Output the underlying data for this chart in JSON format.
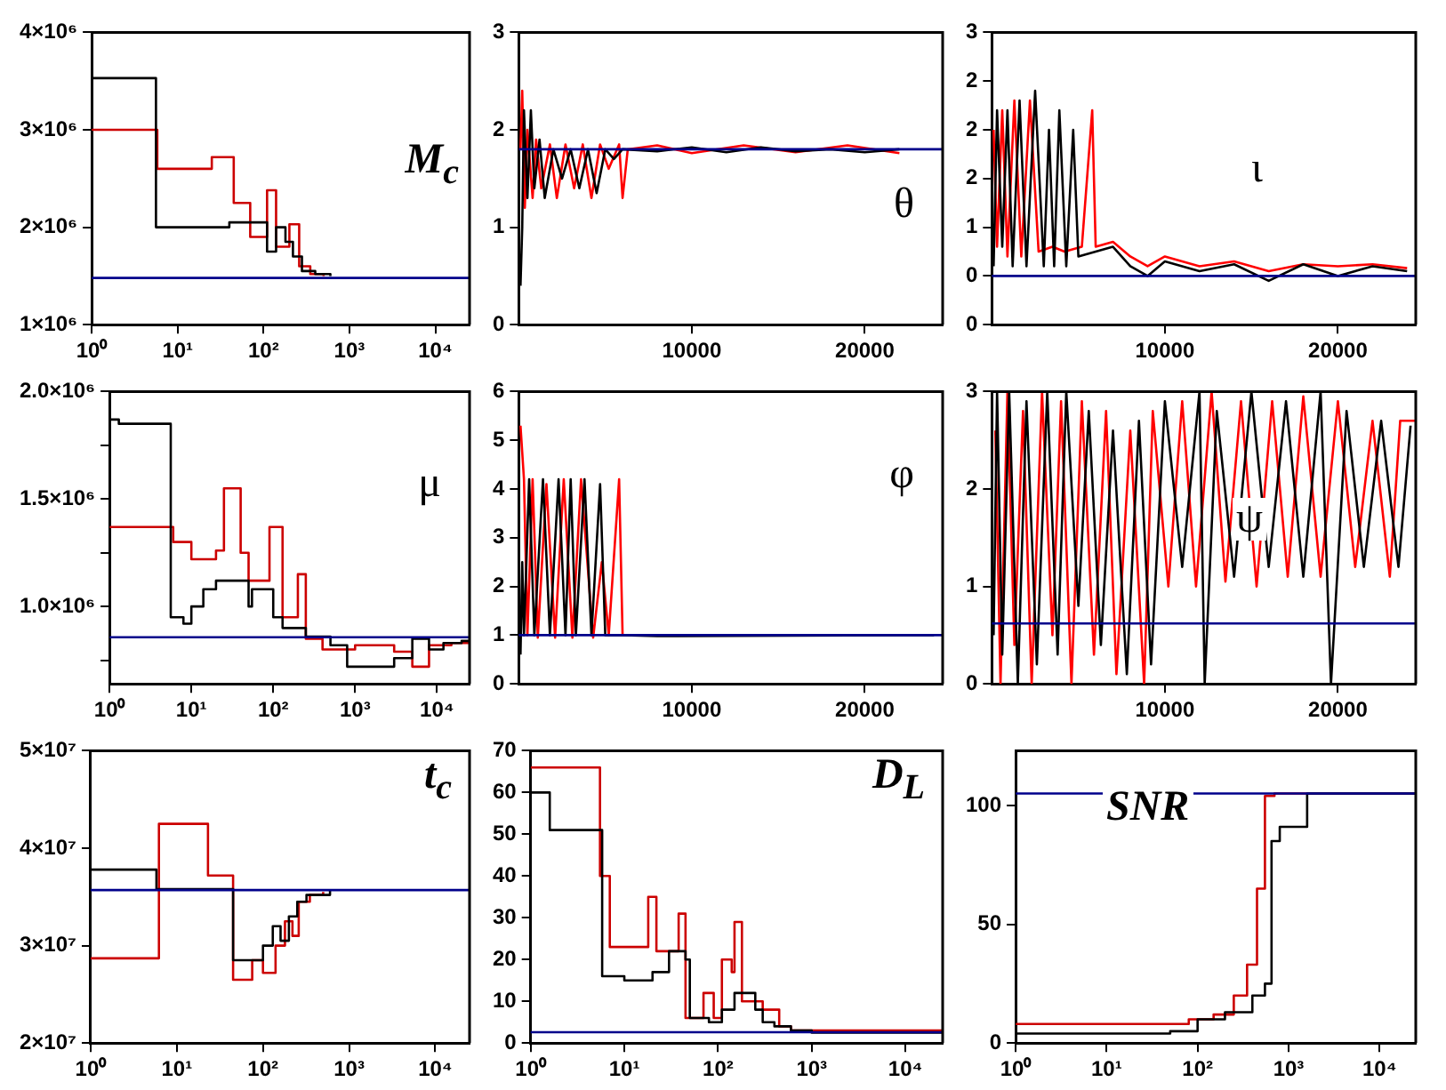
{
  "chart_data": [
    {
      "type": "step",
      "title": "M$_{c}$",
      "log": "x",
      "xlim": [
        1,
        25000
      ],
      "xticks": [
        {
          "value": 1,
          "label": "10⁰"
        },
        {
          "value": 10,
          "label": "10¹"
        },
        {
          "value": 100,
          "label": "10²"
        },
        {
          "value": 1000,
          "label": "10³"
        },
        {
          "value": 10000,
          "label": "10⁴"
        }
      ],
      "ylim": [
        1000000,
        4000000
      ],
      "yticks": [
        {
          "value": 1000000,
          "label": "1×10⁶"
        },
        {
          "value": 2000000,
          "label": "2×10⁶"
        },
        {
          "value": 3000000,
          "label": "3×10⁶"
        },
        {
          "value": 4000000,
          "label": "4×10⁶"
        }
      ],
      "series": [
        {
          "color": "#000000",
          "x": [
            1,
            5.6,
            40,
            110,
            140,
            180,
            220,
            280,
            400,
            600
          ],
          "values": [
            3530000,
            2000000,
            2050000,
            1750000,
            2000000,
            1850000,
            1700000,
            1550000,
            1520000,
            1500000
          ]
        },
        {
          "color": "#cc0000",
          "x": [
            1,
            5.8,
            25,
            45,
            70,
            110,
            140,
            200,
            260,
            350,
            500
          ],
          "values": [
            3000000,
            2600000,
            2720000,
            2250000,
            1900000,
            2380000,
            1800000,
            2030000,
            1600000,
            1520000,
            1500000
          ]
        }
      ],
      "ref_lines": [
        {
          "axis": "y",
          "value": 1480000,
          "color": "#00008b"
        }
      ]
    },
    {
      "type": "line",
      "title": "θ",
      "xlim": [
        0,
        24500
      ],
      "xticks": [
        {
          "value": 10000,
          "label": "10000"
        },
        {
          "value": 20000,
          "label": "20000"
        }
      ],
      "ylim": [
        0,
        3
      ],
      "yticks": [
        0,
        1,
        2,
        3
      ],
      "series": [
        {
          "color": "#000000",
          "x": [
            100,
            200,
            300,
            500,
            700,
            900,
            1200,
            1500,
            2000,
            2500,
            3000,
            3500,
            4000,
            4500,
            5000,
            5500,
            6000,
            8000,
            10000,
            12000,
            14000,
            16000,
            18000,
            20000,
            22000
          ],
          "values": [
            0.4,
            1.0,
            2.2,
            1.3,
            2.2,
            1.4,
            1.9,
            1.3,
            1.8,
            1.5,
            1.8,
            1.4,
            1.8,
            1.35,
            1.8,
            1.7,
            1.8,
            1.78,
            1.82,
            1.77,
            1.82,
            1.78,
            1.8,
            1.77,
            1.8
          ]
        },
        {
          "color": "#ff0000",
          "x": [
            100,
            200,
            350,
            500,
            800,
            1000,
            1300,
            1800,
            2200,
            2700,
            3200,
            3700,
            4200,
            4700,
            5200,
            5800,
            6000,
            6300,
            8000,
            10000,
            13000,
            16000,
            19000,
            22000
          ],
          "values": [
            1.8,
            2.4,
            1.2,
            2.0,
            1.3,
            1.9,
            1.4,
            1.85,
            1.3,
            1.85,
            1.4,
            1.85,
            1.3,
            1.85,
            1.6,
            1.85,
            1.3,
            1.8,
            1.84,
            1.76,
            1.84,
            1.77,
            1.84,
            1.76
          ]
        }
      ],
      "ref_lines": [
        {
          "axis": "y",
          "value": 1.8,
          "color": "#00008b"
        }
      ]
    },
    {
      "type": "line",
      "title": "ι",
      "xlim": [
        0,
        24500
      ],
      "xticks": [
        {
          "value": 10000,
          "label": "10000"
        },
        {
          "value": 20000,
          "label": "20000"
        }
      ],
      "ylim": [
        0,
        3
      ],
      "yticks": [
        {
          "value": 0,
          "label": "0"
        },
        {
          "value": 0.5,
          "label": "0"
        },
        {
          "value": 1,
          "label": "1"
        },
        {
          "value": 1.5,
          "label": "2"
        },
        {
          "value": 2,
          "label": "2"
        },
        {
          "value": 2.5,
          "label": "2"
        },
        {
          "value": 3,
          "label": "3"
        }
      ],
      "series": [
        {
          "color": "#000000",
          "x": [
            100,
            300,
            600,
            900,
            1200,
            1600,
            2000,
            2500,
            3000,
            3300,
            3600,
            3900,
            4300,
            4700,
            5000,
            6000,
            7000,
            8000,
            9000,
            10000,
            12000,
            14000,
            16000,
            18000,
            20000,
            22000,
            24000
          ],
          "values": [
            0.6,
            2.2,
            0.8,
            2.2,
            0.6,
            2.3,
            0.6,
            2.4,
            0.6,
            2.0,
            0.6,
            2.2,
            0.6,
            2.0,
            0.7,
            0.75,
            0.8,
            0.6,
            0.5,
            0.65,
            0.55,
            0.62,
            0.45,
            0.62,
            0.5,
            0.6,
            0.55
          ]
        },
        {
          "color": "#ff0000",
          "x": [
            100,
            300,
            600,
            900,
            1300,
            1700,
            2200,
            2700,
            3500,
            4200,
            5200,
            5800,
            6000,
            7000,
            8000,
            9000,
            10000,
            12000,
            14000,
            16000,
            18000,
            20000,
            22000,
            24000
          ],
          "values": [
            2.0,
            0.8,
            2.2,
            0.7,
            2.3,
            0.7,
            2.3,
            0.75,
            0.8,
            0.75,
            0.8,
            2.2,
            0.8,
            0.85,
            0.7,
            0.6,
            0.7,
            0.6,
            0.65,
            0.55,
            0.62,
            0.6,
            0.62,
            0.58
          ]
        }
      ],
      "ref_lines": [
        {
          "axis": "y",
          "value": 0.5,
          "color": "#00008b"
        }
      ]
    },
    {
      "type": "step",
      "title": "μ",
      "log": "x",
      "xlim": [
        1,
        25000
      ],
      "xticks": [
        {
          "value": 1,
          "label": "10⁰"
        },
        {
          "value": 10,
          "label": "10¹"
        },
        {
          "value": 100,
          "label": "10²"
        },
        {
          "value": 1000,
          "label": "10³"
        },
        {
          "value": 10000,
          "label": "10⁴"
        }
      ],
      "ylim": [
        640000,
        2000000
      ],
      "yticks": [
        {
          "value": 750000,
          "label": null
        },
        {
          "value": 1000000,
          "label": "1.0×10⁶"
        },
        {
          "value": 1250000,
          "label": null
        },
        {
          "value": 1500000,
          "label": "1.5×10⁶"
        },
        {
          "value": 1750000,
          "label": null
        },
        {
          "value": 2000000,
          "label": "2.0×10⁶"
        }
      ],
      "series": [
        {
          "color": "#000000",
          "x": [
            1,
            1.3,
            5.6,
            8,
            10,
            14,
            20,
            50,
            55,
            100,
            130,
            250,
            500,
            800,
            2000,
            3000,
            5000,
            8000,
            12000,
            20000,
            25000
          ],
          "values": [
            1870000,
            1850000,
            950000,
            920000,
            1000000,
            1080000,
            1120000,
            1000000,
            1080000,
            950000,
            900000,
            860000,
            820000,
            720000,
            720000,
            760000,
            850000,
            800000,
            830000,
            840000,
            840000
          ]
        },
        {
          "color": "#cc0000",
          "x": [
            1,
            6,
            10,
            20,
            25,
            40,
            50,
            90,
            130,
            200,
            250,
            400,
            1000,
            3000,
            5000,
            8000,
            15000,
            25000
          ],
          "values": [
            1370000,
            1300000,
            1220000,
            1260000,
            1550000,
            1250000,
            1120000,
            1370000,
            950000,
            1150000,
            850000,
            800000,
            820000,
            790000,
            720000,
            820000,
            830000,
            830000
          ]
        }
      ],
      "ref_lines": [
        {
          "axis": "y",
          "value": 857000,
          "color": "#00008b"
        }
      ]
    },
    {
      "type": "line",
      "title": "φ",
      "xlim": [
        0,
        24500
      ],
      "xticks": [
        {
          "value": 10000,
          "label": "10000"
        },
        {
          "value": 20000,
          "label": "20000"
        }
      ],
      "ylim": [
        0,
        6
      ],
      "yticks": [
        0,
        1,
        2,
        3,
        4,
        5,
        6
      ],
      "series": [
        {
          "color": "#000000",
          "x": [
            100,
            200,
            300,
            600,
            900,
            1400,
            1800,
            2300,
            2700,
            3000,
            3300,
            3800,
            4200,
            4700,
            5000,
            6000,
            8000,
            24000
          ],
          "values": [
            0.6,
            2.5,
            1.0,
            4.2,
            1.0,
            4.2,
            1.0,
            4.2,
            1.0,
            4.2,
            1.0,
            4.2,
            1.0,
            4.1,
            1.0,
            1.0,
            0.98,
            1.0
          ]
        },
        {
          "color": "#ff0000",
          "x": [
            100,
            300,
            500,
            800,
            1100,
            1600,
            2100,
            2600,
            3100,
            3600,
            4300,
            4800,
            5200,
            5800,
            6000
          ],
          "values": [
            5.3,
            4.2,
            1.0,
            4.2,
            0.95,
            4.1,
            0.95,
            4.2,
            0.95,
            4.2,
            0.95,
            2.5,
            1.0,
            4.2,
            1.0
          ]
        }
      ],
      "ref_lines": [
        {
          "axis": "y",
          "value": 1,
          "color": "#00008b"
        }
      ]
    },
    {
      "type": "line",
      "title": "ψ",
      "xlim": [
        0,
        24500
      ],
      "xticks": [
        {
          "value": 10000,
          "label": "10000"
        },
        {
          "value": 20000,
          "label": "20000"
        }
      ],
      "ylim": [
        0,
        3
      ],
      "yticks": [
        0,
        1,
        2,
        3
      ],
      "series": [
        {
          "color": "#000000",
          "x": [
            100,
            300,
            600,
            1000,
            1500,
            2000,
            2600,
            3200,
            3800,
            4300,
            5000,
            5600,
            6300,
            7000,
            7800,
            8500,
            9200,
            10000,
            11000,
            12000,
            12300,
            13000,
            14000,
            15000,
            16000,
            17000,
            18000,
            19000,
            19600,
            20500,
            21500,
            22500,
            23500,
            24200
          ],
          "values": [
            0.5,
            3.0,
            0.3,
            3.0,
            0.0,
            2.9,
            0.2,
            3.0,
            0.3,
            3.0,
            0.8,
            2.8,
            0.4,
            2.6,
            0.1,
            2.7,
            0.2,
            2.9,
            1.2,
            3.0,
            0.0,
            2.8,
            1.1,
            3.0,
            1.2,
            2.9,
            1.1,
            3.0,
            0.0,
            2.8,
            1.2,
            2.7,
            1.2,
            2.65
          ]
        },
        {
          "color": "#ff0000",
          "x": [
            200,
            500,
            900,
            1300,
            1800,
            2300,
            2900,
            3500,
            4000,
            4600,
            5200,
            5900,
            6600,
            7200,
            8000,
            8800,
            9300,
            10200,
            11000,
            11800,
            12700,
            13500,
            14400,
            15300,
            16200,
            17100,
            18000,
            19000,
            20000,
            21000,
            22000,
            23000,
            23600,
            24500
          ],
          "values": [
            2.6,
            0.0,
            3.0,
            0.4,
            2.8,
            0.0,
            3.0,
            0.5,
            2.9,
            0.0,
            2.9,
            0.3,
            2.8,
            0.1,
            2.6,
            0.0,
            2.8,
            1.0,
            2.9,
            1.0,
            3.0,
            1.05,
            2.9,
            1.0,
            2.9,
            1.1,
            2.95,
            1.1,
            2.9,
            1.2,
            2.7,
            1.1,
            2.7,
            2.7
          ]
        }
      ],
      "ref_lines": [
        {
          "axis": "y",
          "value": 0.62,
          "color": "#00008b"
        }
      ]
    },
    {
      "type": "step",
      "title": "t$_{c}$",
      "log": "x",
      "xlim": [
        1,
        25000
      ],
      "xticks": [
        {
          "value": 1,
          "label": "10⁰"
        },
        {
          "value": 10,
          "label": "10¹"
        },
        {
          "value": 100,
          "label": "10²"
        },
        {
          "value": 1000,
          "label": "10³"
        },
        {
          "value": 10000,
          "label": "10⁴"
        }
      ],
      "ylim": [
        20000000,
        50000000
      ],
      "yticks": [
        {
          "value": 20000000,
          "label": "2×10⁷"
        },
        {
          "value": 30000000,
          "label": "3×10⁷"
        },
        {
          "value": 40000000,
          "label": "4×10⁷"
        },
        {
          "value": 50000000,
          "label": "5×10⁷"
        }
      ],
      "series": [
        {
          "color": "#000000",
          "x": [
            1,
            5.8,
            45,
            100,
            130,
            160,
            200,
            250,
            320,
            600
          ],
          "values": [
            37800000,
            35800000,
            28500000,
            30000000,
            32000000,
            30500000,
            33000000,
            34500000,
            35200000,
            35800000
          ]
        },
        {
          "color": "#cc0000",
          "x": [
            1,
            6.2,
            23,
            45,
            75,
            100,
            140,
            180,
            220,
            260,
            350,
            500
          ],
          "values": [
            28700000,
            42500000,
            37200000,
            26500000,
            28500000,
            27200000,
            30000000,
            32500000,
            31000000,
            34500000,
            35200000,
            35500000
          ]
        }
      ],
      "ref_lines": [
        {
          "axis": "y",
          "value": 35700000,
          "color": "#00008b"
        }
      ]
    },
    {
      "type": "step",
      "title": "D$_{L}$",
      "log": "x",
      "xlim": [
        1,
        25000
      ],
      "xticks": [
        {
          "value": 1,
          "label": "10⁰"
        },
        {
          "value": 10,
          "label": "10¹"
        },
        {
          "value": 100,
          "label": "10²"
        },
        {
          "value": 1000,
          "label": "10³"
        },
        {
          "value": 10000,
          "label": "10⁴"
        }
      ],
      "ylim": [
        0,
        70
      ],
      "yticks": [
        0,
        10,
        20,
        30,
        40,
        50,
        60,
        70
      ],
      "series": [
        {
          "color": "#000000",
          "x": [
            1,
            1.6,
            5.8,
            10,
            20,
            30,
            45,
            50,
            80,
            110,
            150,
            250,
            300,
            400,
            600,
            1000,
            25000
          ],
          "values": [
            60,
            51,
            16,
            15,
            17,
            22,
            20,
            6,
            5,
            8,
            12,
            8,
            5,
            4,
            3,
            2.5,
            2.5
          ]
        },
        {
          "color": "#cc0000",
          "x": [
            1,
            5.5,
            7,
            18,
            22,
            38,
            45,
            70,
            90,
            110,
            140,
            150,
            180,
            300,
            450,
            600,
            25000
          ],
          "values": [
            66,
            40,
            23,
            35,
            22,
            31,
            6,
            12,
            6,
            20,
            17,
            29,
            10,
            8,
            4,
            3,
            3
          ]
        }
      ],
      "ref_lines": [
        {
          "axis": "y",
          "value": 2.6,
          "color": "#00008b"
        }
      ]
    },
    {
      "type": "step",
      "title": "SNR",
      "log": "x",
      "xlim": [
        1,
        25000
      ],
      "xticks": [
        {
          "value": 1,
          "label": "10⁰"
        },
        {
          "value": 10,
          "label": "10¹"
        },
        {
          "value": 100,
          "label": "10²"
        },
        {
          "value": 1000,
          "label": "10³"
        },
        {
          "value": 10000,
          "label": "10⁴"
        }
      ],
      "ylim": [
        0,
        123
      ],
      "yticks": [
        0,
        50,
        100
      ],
      "series": [
        {
          "color": "#000000",
          "x": [
            1,
            50,
            100,
            200,
            400,
            550,
            650,
            800,
            1600,
            25000
          ],
          "values": [
            4,
            5,
            10,
            13,
            20,
            25,
            85,
            91,
            105,
            105
          ]
        },
        {
          "color": "#cc0000",
          "x": [
            1,
            50,
            80,
            150,
            250,
            350,
            450,
            550,
            700,
            25000
          ],
          "values": [
            8,
            8,
            10,
            12,
            20,
            33,
            65,
            104,
            105,
            105
          ]
        }
      ],
      "ref_lines": [
        {
          "axis": "y",
          "value": 105,
          "color": "#00008b"
        }
      ]
    }
  ]
}
